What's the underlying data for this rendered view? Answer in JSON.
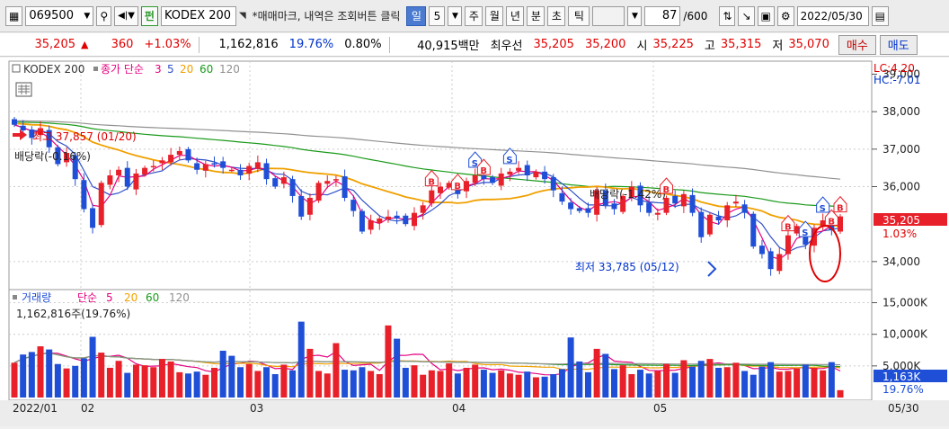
{
  "toolbar": {
    "code": "069500",
    "type_badge": "펀",
    "name": "KODEX 200",
    "hint": "*매매마크, 내역은 조회버튼 클릭",
    "period_buttons": [
      "일",
      "5",
      "주",
      "월",
      "년",
      "분",
      "초",
      "틱"
    ],
    "count": "87",
    "count_total": "/600",
    "date": "2022/05/30"
  },
  "quote": {
    "price": "35,205",
    "change": "360",
    "change_pct": "+1.03%",
    "volume": "1,162,816",
    "vol_ratio": "19.76%",
    "turnover": "0.80%",
    "amount": "40,915백만",
    "best_label": "최우선",
    "ask": "35,205",
    "bid": "35,200",
    "open_label": "시",
    "open": "35,225",
    "high_label": "고",
    "high": "35,315",
    "low_label": "저",
    "low": "35,070",
    "buy_label": "매수",
    "sell_label": "매도"
  },
  "chart": {
    "legend_name": "KODEX 200",
    "legend_ma": "종가 단순",
    "ma_periods": [
      "3",
      "5",
      "20",
      "60",
      "120"
    ],
    "lc": "LC:4.20",
    "hc": "HC:-7.01",
    "high_note": "최고 37,857 (01/20)",
    "low_note": "최저 33,785 (05/12)",
    "div_note1": "배당락(-0.16%)",
    "div_note2": "배당락(-1.42%)",
    "current_price_tag": "35,205",
    "current_pct_tag": "1.03%",
    "vol_legend": "거래량",
    "vol_legend_ma": "단순",
    "vol_ma_periods": [
      "5",
      "20",
      "60",
      "120"
    ],
    "vol_info": "1,162,816주(19.76%)",
    "vol_tag": "1,163K",
    "vol_pct_tag": "19.76%",
    "x_labels": [
      "2022/01",
      "02",
      "03",
      "04",
      "05",
      "05/30"
    ],
    "y_labels": [
      "39,000",
      "38,000",
      "37,000",
      "36,000",
      "34,000"
    ],
    "vol_y_labels": [
      "15,000K",
      "10,000K",
      "5,000K"
    ],
    "colors": {
      "up": "#e8202a",
      "down": "#1f4fd6",
      "ma3": "#e60080",
      "ma5": "#3050c8",
      "ma20": "#f0a000",
      "ma60": "#1a9a1a",
      "ma120": "#909090"
    }
  },
  "chart_data": {
    "type": "candlestick",
    "x_range": [
      "2022/01",
      "2022/05/30"
    ],
    "price_ylim": [
      33300,
      39300
    ],
    "volume_ylim": [
      0,
      16500
    ],
    "volume_unit": "K",
    "close": [
      37650,
      37500,
      37300,
      37560,
      37050,
      36600,
      36900,
      36200,
      35400,
      34900,
      36100,
      36300,
      36450,
      36000,
      36350,
      36500,
      36550,
      36700,
      36850,
      36950,
      36700,
      36450,
      36600,
      36600,
      36500,
      36450,
      36300,
      36550,
      36650,
      36200,
      36000,
      36250,
      35750,
      35200,
      35700,
      36100,
      36150,
      36200,
      35700,
      35350,
      34800,
      35100,
      35150,
      35200,
      35150,
      35000,
      35300,
      35500,
      35900,
      36000,
      36100,
      35800,
      36150,
      36300,
      36200,
      36100,
      36350,
      36400,
      36500,
      36300,
      36400,
      36200,
      35900,
      35600,
      35400,
      35350,
      35300,
      35900,
      35500,
      35400,
      35750,
      36000,
      35500,
      35300,
      35300,
      35700,
      35550,
      35800,
      35300,
      34650,
      35250,
      35100,
      35500,
      35600,
      35300,
      34400,
      34200,
      33800,
      34200,
      34700,
      34950,
      34450,
      34900,
      35100,
      34850,
      35205
    ],
    "volume": [
      5500,
      6800,
      7200,
      8100,
      7600,
      5300,
      4600,
      5000,
      6200,
      9600,
      7100,
      4700,
      5800,
      3900,
      5200,
      5100,
      4800,
      6100,
      5700,
      4000,
      3800,
      4100,
      3600,
      4700,
      7400,
      6600,
      4800,
      5300,
      4200,
      4800,
      3700,
      5200,
      4300,
      12000,
      7700,
      4200,
      3800,
      8600,
      4400,
      4300,
      4800,
      4200,
      3700,
      11400,
      9300,
      4700,
      5100,
      3600,
      4300,
      4200,
      5400,
      3800,
      4700,
      5200,
      4400,
      3900,
      4300,
      3800,
      3600,
      4100,
      3200,
      3300,
      3700,
      4500,
      9500,
      5700,
      4000,
      7700,
      6900,
      4500,
      5100,
      3700,
      4400,
      3800,
      4200,
      5300,
      3900,
      5900,
      4900,
      5800,
      6100,
      4700,
      4800,
      5500,
      4200,
      3600,
      4900,
      5600,
      4100,
      4200,
      4600,
      5200,
      4700,
      4300,
      5600,
      1163
    ]
  }
}
